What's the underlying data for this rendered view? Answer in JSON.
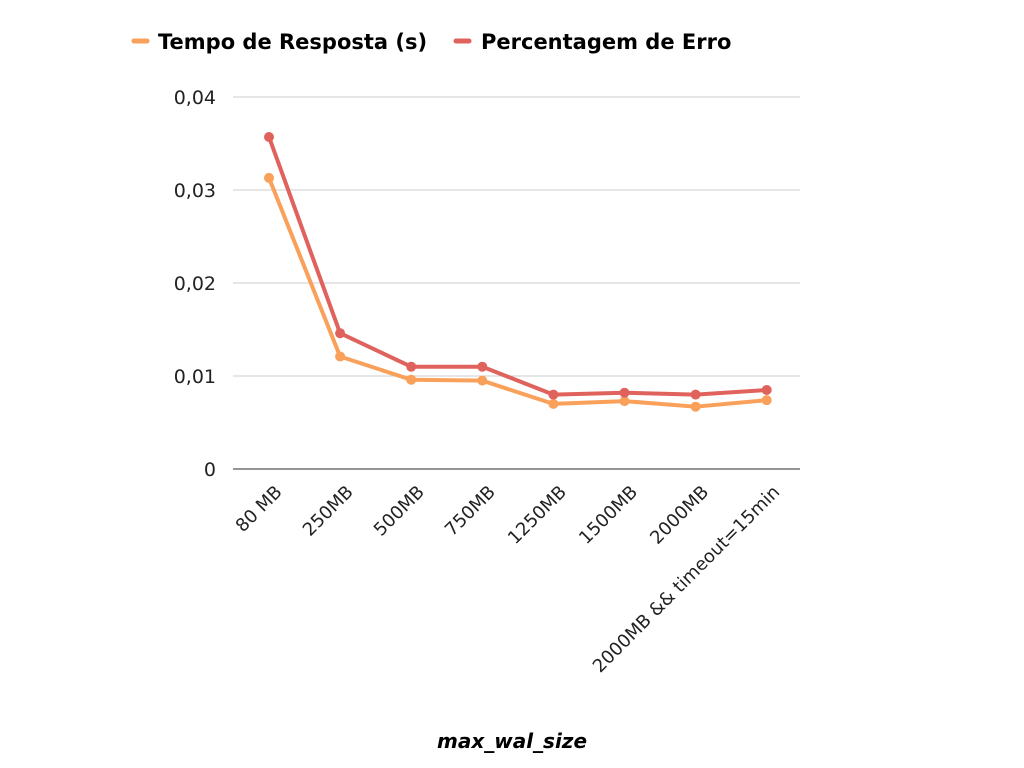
{
  "chart_data": {
    "type": "line",
    "title": "",
    "xlabel": "max_wal_size",
    "ylabel": "",
    "categories": [
      "80 MB",
      "250MB",
      "500MB",
      "750MB",
      "1250MB",
      "1500MB",
      "2000MB",
      "2000MB && timeout=15min"
    ],
    "series": [
      {
        "name": "Tempo de Resposta (s)",
        "color": "#f9a05a",
        "values": [
          0.0313,
          0.0121,
          0.0096,
          0.0095,
          0.007,
          0.0073,
          0.0067,
          0.0074
        ]
      },
      {
        "name": "Percentagem de Erro",
        "color": "#e0625c",
        "values": [
          0.0357,
          0.0146,
          0.011,
          0.011,
          0.008,
          0.0082,
          0.008,
          0.0085
        ]
      }
    ],
    "yticks": [
      "0",
      "0,01",
      "0,02",
      "0,03",
      "0,04"
    ],
    "ylim": [
      0,
      0.04
    ],
    "grid": true,
    "legend": "top"
  }
}
